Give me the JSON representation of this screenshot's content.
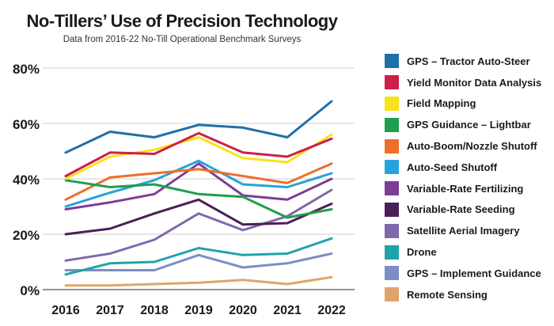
{
  "chart_data": {
    "type": "line",
    "title": "No-Tillers’ Use of Precision Technology",
    "subtitle": "Data from 2016-22 No-Till Operational Benchmark Surveys",
    "xlabel": "",
    "ylabel": "",
    "categories": [
      "2016",
      "2017",
      "2018",
      "2019",
      "2020",
      "2021",
      "2022"
    ],
    "ylim": [
      0,
      80
    ],
    "yticks": [
      0,
      20,
      40,
      60,
      80
    ],
    "ytick_labels": [
      "0%",
      "20%",
      "40%",
      "60%",
      "80%"
    ],
    "grid": "horizontal",
    "legend_position": "right",
    "series": [
      {
        "name": "GPS – Tractor Auto-Steer",
        "color": "#1f6fa8",
        "values": [
          49.5,
          57,
          55,
          59.5,
          58.5,
          55,
          68
        ]
      },
      {
        "name": "Yield Monitor Data Analysis",
        "color": "#cc1f4a",
        "values": [
          41,
          49.5,
          49,
          56.5,
          49.5,
          48,
          54.5
        ]
      },
      {
        "name": "Field Mapping",
        "color": "#f7e21b",
        "values": [
          40,
          48,
          50.5,
          55,
          47.5,
          46,
          56
        ]
      },
      {
        "name": "GPS Guidance – Lightbar",
        "color": "#1f9e4f",
        "values": [
          39.5,
          37,
          38,
          34.5,
          33.5,
          26,
          29
        ]
      },
      {
        "name": "Auto-Boom/Nozzle Shutoff",
        "color": "#ee6f2a",
        "values": [
          32.5,
          40.5,
          42,
          43.5,
          41,
          38.5,
          45.5
        ]
      },
      {
        "name": "Auto-Seed Shutoff",
        "color": "#26a3dc",
        "values": [
          30,
          35,
          39.5,
          46.5,
          38,
          37,
          42
        ]
      },
      {
        "name": "Variable-Rate Fertilizing",
        "color": "#7d3c98",
        "values": [
          29,
          31.5,
          34.5,
          45.5,
          34,
          32.5,
          40
        ]
      },
      {
        "name": "Variable-Rate Seeding",
        "color": "#4a1f57",
        "values": [
          20,
          22,
          27.5,
          32.5,
          23.5,
          24,
          31
        ]
      },
      {
        "name": "Satellite Aerial Imagery",
        "color": "#8068aa",
        "values": [
          10.5,
          13,
          18,
          27.5,
          21.5,
          26.5,
          36
        ]
      },
      {
        "name": "Drone",
        "color": "#1fa3ab",
        "values": [
          5.5,
          9.5,
          10,
          15,
          12.5,
          13,
          18.5
        ]
      },
      {
        "name": "GPS – Implement Guidance",
        "color": "#7d8ec4",
        "values": [
          7,
          7,
          7,
          12.5,
          8,
          9.5,
          13
        ]
      },
      {
        "name": "Remote Sensing",
        "color": "#e0a46a",
        "values": [
          1.5,
          1.5,
          2,
          2.5,
          3.5,
          2,
          4.5
        ]
      }
    ]
  }
}
